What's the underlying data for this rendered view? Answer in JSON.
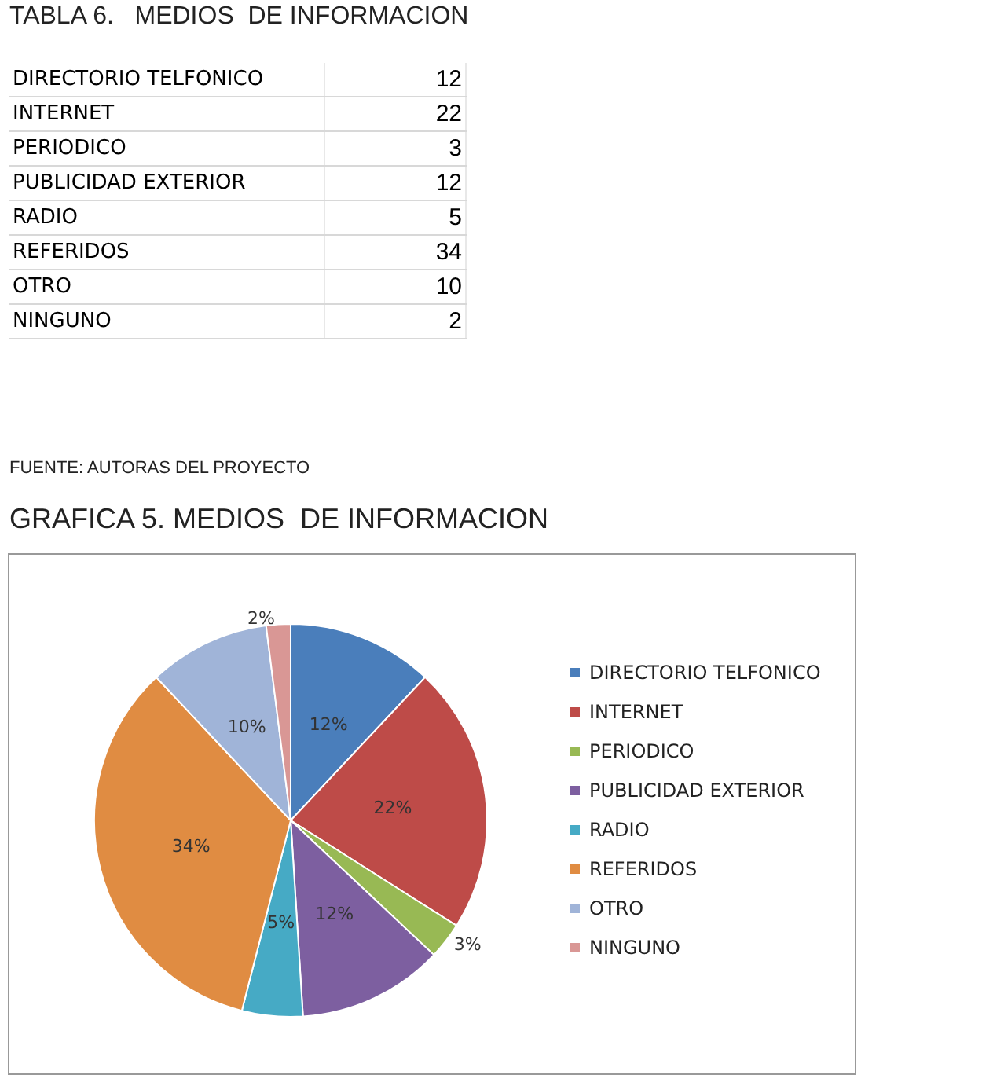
{
  "chart_data": [
    {
      "type": "other",
      "title": "TABLA 6.   MEDIOS  DE INFORMACION",
      "categories": [
        "DIRECTORIO TELFONICO",
        "INTERNET",
        "PERIODICO",
        "PUBLICIDAD EXTERIOR",
        "RADIO",
        "REFERIDOS",
        "OTRO",
        "NINGUNO"
      ],
      "values": [
        12,
        22,
        3,
        12,
        5,
        34,
        10,
        2
      ],
      "data_labels": true,
      "annotations": [
        "FUENTE: AUTORAS DEL PROYECTO"
      ]
    },
    {
      "type": "pie",
      "title": "GRAFICA 5. MEDIOS  DE INFORMACION",
      "categories": [
        "DIRECTORIO TELFONICO",
        "INTERNET",
        "PERIODICO",
        "PUBLICIDAD EXTERIOR",
        "RADIO",
        "REFERIDOS",
        "OTRO",
        "NINGUNO"
      ],
      "values": [
        12,
        22,
        3,
        12,
        5,
        34,
        10,
        2
      ],
      "colors": [
        "#4a7ebb",
        "#be4b48",
        "#98b954",
        "#7d5fa0",
        "#46aac5",
        "#e08c42",
        "#a0b4d8",
        "#d99795"
      ],
      "value_labels": [
        "12%",
        "22%",
        "3%",
        "12%",
        "5%",
        "34%",
        "10%",
        "2%"
      ],
      "legend": "right"
    }
  ]
}
